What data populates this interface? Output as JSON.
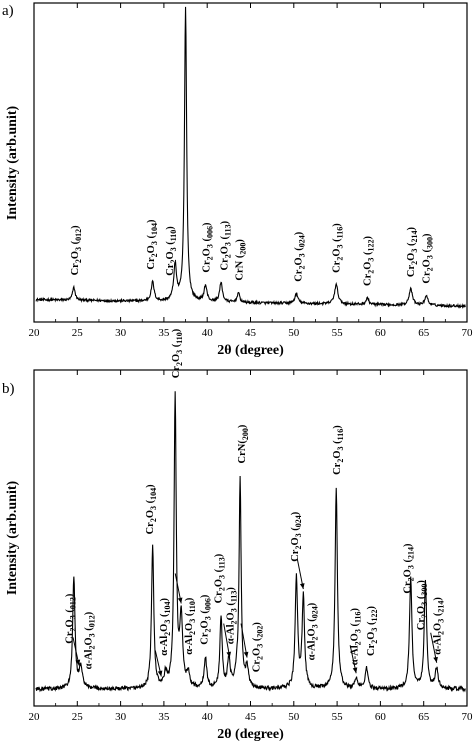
{
  "chart_data": [
    {
      "panel_label": "a)",
      "type": "line",
      "xlabel": "2θ (degree)",
      "ylabel": "Intensity (arb.unit)",
      "xlim": [
        20,
        70
      ],
      "xticks": [
        20,
        25,
        30,
        35,
        40,
        45,
        50,
        55,
        60,
        65,
        70
      ],
      "baseline": 0.05,
      "background_slope": 0.02,
      "noise": 0.008,
      "peaks": [
        {
          "x": 24.6,
          "h": 0.04,
          "w": 0.18
        },
        {
          "x": 33.7,
          "h": 0.06,
          "w": 0.2
        },
        {
          "x": 36.3,
          "h": 0.11,
          "w": 0.2
        },
        {
          "x": 37.5,
          "h": 0.92,
          "w": 0.15
        },
        {
          "x": 39.8,
          "h": 0.05,
          "w": 0.2
        },
        {
          "x": 41.6,
          "h": 0.06,
          "w": 0.2
        },
        {
          "x": 43.6,
          "h": 0.03,
          "w": 0.18
        },
        {
          "x": 50.3,
          "h": 0.03,
          "w": 0.22
        },
        {
          "x": 54.9,
          "h": 0.06,
          "w": 0.24
        },
        {
          "x": 58.5,
          "h": 0.02,
          "w": 0.2
        },
        {
          "x": 63.5,
          "h": 0.05,
          "w": 0.24
        },
        {
          "x": 65.3,
          "h": 0.03,
          "w": 0.22
        }
      ],
      "annotations": [
        {
          "name": "Cr2O3",
          "hkl": "(012)",
          "x": 24.6
        },
        {
          "name": "Cr2O3",
          "hkl": "(104)",
          "x": 33.4
        },
        {
          "name": "Cr2O3",
          "hkl": "(110)",
          "x": 35.6
        },
        {
          "name": "CrN",
          "hkl": "(111)",
          "x": 37.4
        },
        {
          "name": "Cr2O3",
          "hkl": "(006)",
          "x": 39.8
        },
        {
          "name": "Cr2O3",
          "hkl": "(113)",
          "x": 41.9
        },
        {
          "name": "CrN",
          "hkl": "(200)",
          "x": 43.6
        },
        {
          "name": "Cr2O3",
          "hkl": "(024)",
          "x": 50.4
        },
        {
          "name": "Cr2O3",
          "hkl": "(116)",
          "x": 54.8
        },
        {
          "name": "Cr2O3",
          "hkl": "(122)",
          "x": 58.4
        },
        {
          "name": "Cr2O3",
          "hkl": "(214)",
          "x": 63.4
        },
        {
          "name": "Cr2O3",
          "hkl": "(300)",
          "x": 65.2
        }
      ],
      "arrows": []
    },
    {
      "panel_label": "b)",
      "type": "line",
      "xlabel": "2θ (degree)",
      "ylabel": "Intensity (arb.unit)",
      "xlim": [
        20,
        70
      ],
      "xticks": [
        20,
        25,
        30,
        35,
        40,
        45,
        50,
        55,
        60,
        65,
        70
      ],
      "baseline": 0.05,
      "background_slope": 0.0,
      "noise": 0.012,
      "peaks": [
        {
          "x": 24.6,
          "h": 0.33,
          "w": 0.16
        },
        {
          "x": 25.4,
          "h": 0.06,
          "w": 0.25
        },
        {
          "x": 33.7,
          "h": 0.42,
          "w": 0.16
        },
        {
          "x": 35.2,
          "h": 0.04,
          "w": 0.2
        },
        {
          "x": 36.3,
          "h": 0.87,
          "w": 0.15
        },
        {
          "x": 37.0,
          "h": 0.2,
          "w": 0.2
        },
        {
          "x": 37.8,
          "h": 0.04,
          "w": 0.2
        },
        {
          "x": 39.8,
          "h": 0.09,
          "w": 0.18
        },
        {
          "x": 41.6,
          "h": 0.21,
          "w": 0.16
        },
        {
          "x": 42.5,
          "h": 0.08,
          "w": 0.2
        },
        {
          "x": 43.4,
          "h": 0.04,
          "w": 0.2
        },
        {
          "x": 43.8,
          "h": 0.62,
          "w": 0.14
        },
        {
          "x": 44.6,
          "h": 0.06,
          "w": 0.2
        },
        {
          "x": 50.3,
          "h": 0.33,
          "w": 0.17
        },
        {
          "x": 51.1,
          "h": 0.27,
          "w": 0.17
        },
        {
          "x": 54.9,
          "h": 0.6,
          "w": 0.16
        },
        {
          "x": 57.2,
          "h": 0.03,
          "w": 0.2
        },
        {
          "x": 58.4,
          "h": 0.06,
          "w": 0.2
        },
        {
          "x": 63.5,
          "h": 0.33,
          "w": 0.17
        },
        {
          "x": 65.2,
          "h": 0.32,
          "w": 0.17
        },
        {
          "x": 66.5,
          "h": 0.06,
          "w": 0.2
        }
      ],
      "annotations": [
        {
          "name": "Cr2O3",
          "hkl": "(012)",
          "x": 24.0
        },
        {
          "name": "α-Al2O3",
          "hkl": "(012)",
          "x": 26.2
        },
        {
          "name": "Cr2O3",
          "hkl": "(104)",
          "x": 33.3
        },
        {
          "name": "α-Al2O3",
          "hkl": "(104)",
          "x": 34.9
        },
        {
          "name": "Cr2O3",
          "hkl": "(110)",
          "x": 36.3
        },
        {
          "name": "α-Al2O3",
          "hkl": "(110)",
          "x": 37.8
        },
        {
          "name": "Cr2O3",
          "hkl": "(006)",
          "x": 39.6
        },
        {
          "name": "Cr2O3",
          "hkl": "(113)",
          "x": 41.2
        },
        {
          "name": "α-Al2O3",
          "hkl": "(113)",
          "x": 42.6
        },
        {
          "name": "CrN(200)",
          "hkl": "",
          "x": 43.9
        },
        {
          "name": "Cr2O3",
          "hkl": "(202)",
          "x": 45.6
        },
        {
          "name": "Cr2O3",
          "hkl": "(024)",
          "x": 50.0
        },
        {
          "name": "α-Al2O3",
          "hkl": "(024)",
          "x": 51.9
        },
        {
          "name": "Cr2O3",
          "hkl": "(116)",
          "x": 54.9
        },
        {
          "name": "α-Al2O3",
          "hkl": "(116)",
          "x": 56.9
        },
        {
          "name": "Cr2O3",
          "hkl": "(122)",
          "x": 58.8
        },
        {
          "name": "Cr2O3",
          "hkl": "(214)",
          "x": 63.0
        },
        {
          "name": "Cr2O3",
          "hkl": "(300)",
          "x": 64.6
        },
        {
          "name": "α-Al2O3",
          "hkl": "(214)",
          "x": 66.5
        }
      ],
      "arrows": [
        {
          "to_x": 25.2
        },
        {
          "to_x": 34.7
        },
        {
          "to_x": 37.0
        },
        {
          "to_x": 42.6
        },
        {
          "to_x": 44.6
        },
        {
          "to_x": 51.1
        },
        {
          "to_x": 57.2
        },
        {
          "to_x": 66.5
        }
      ]
    }
  ]
}
